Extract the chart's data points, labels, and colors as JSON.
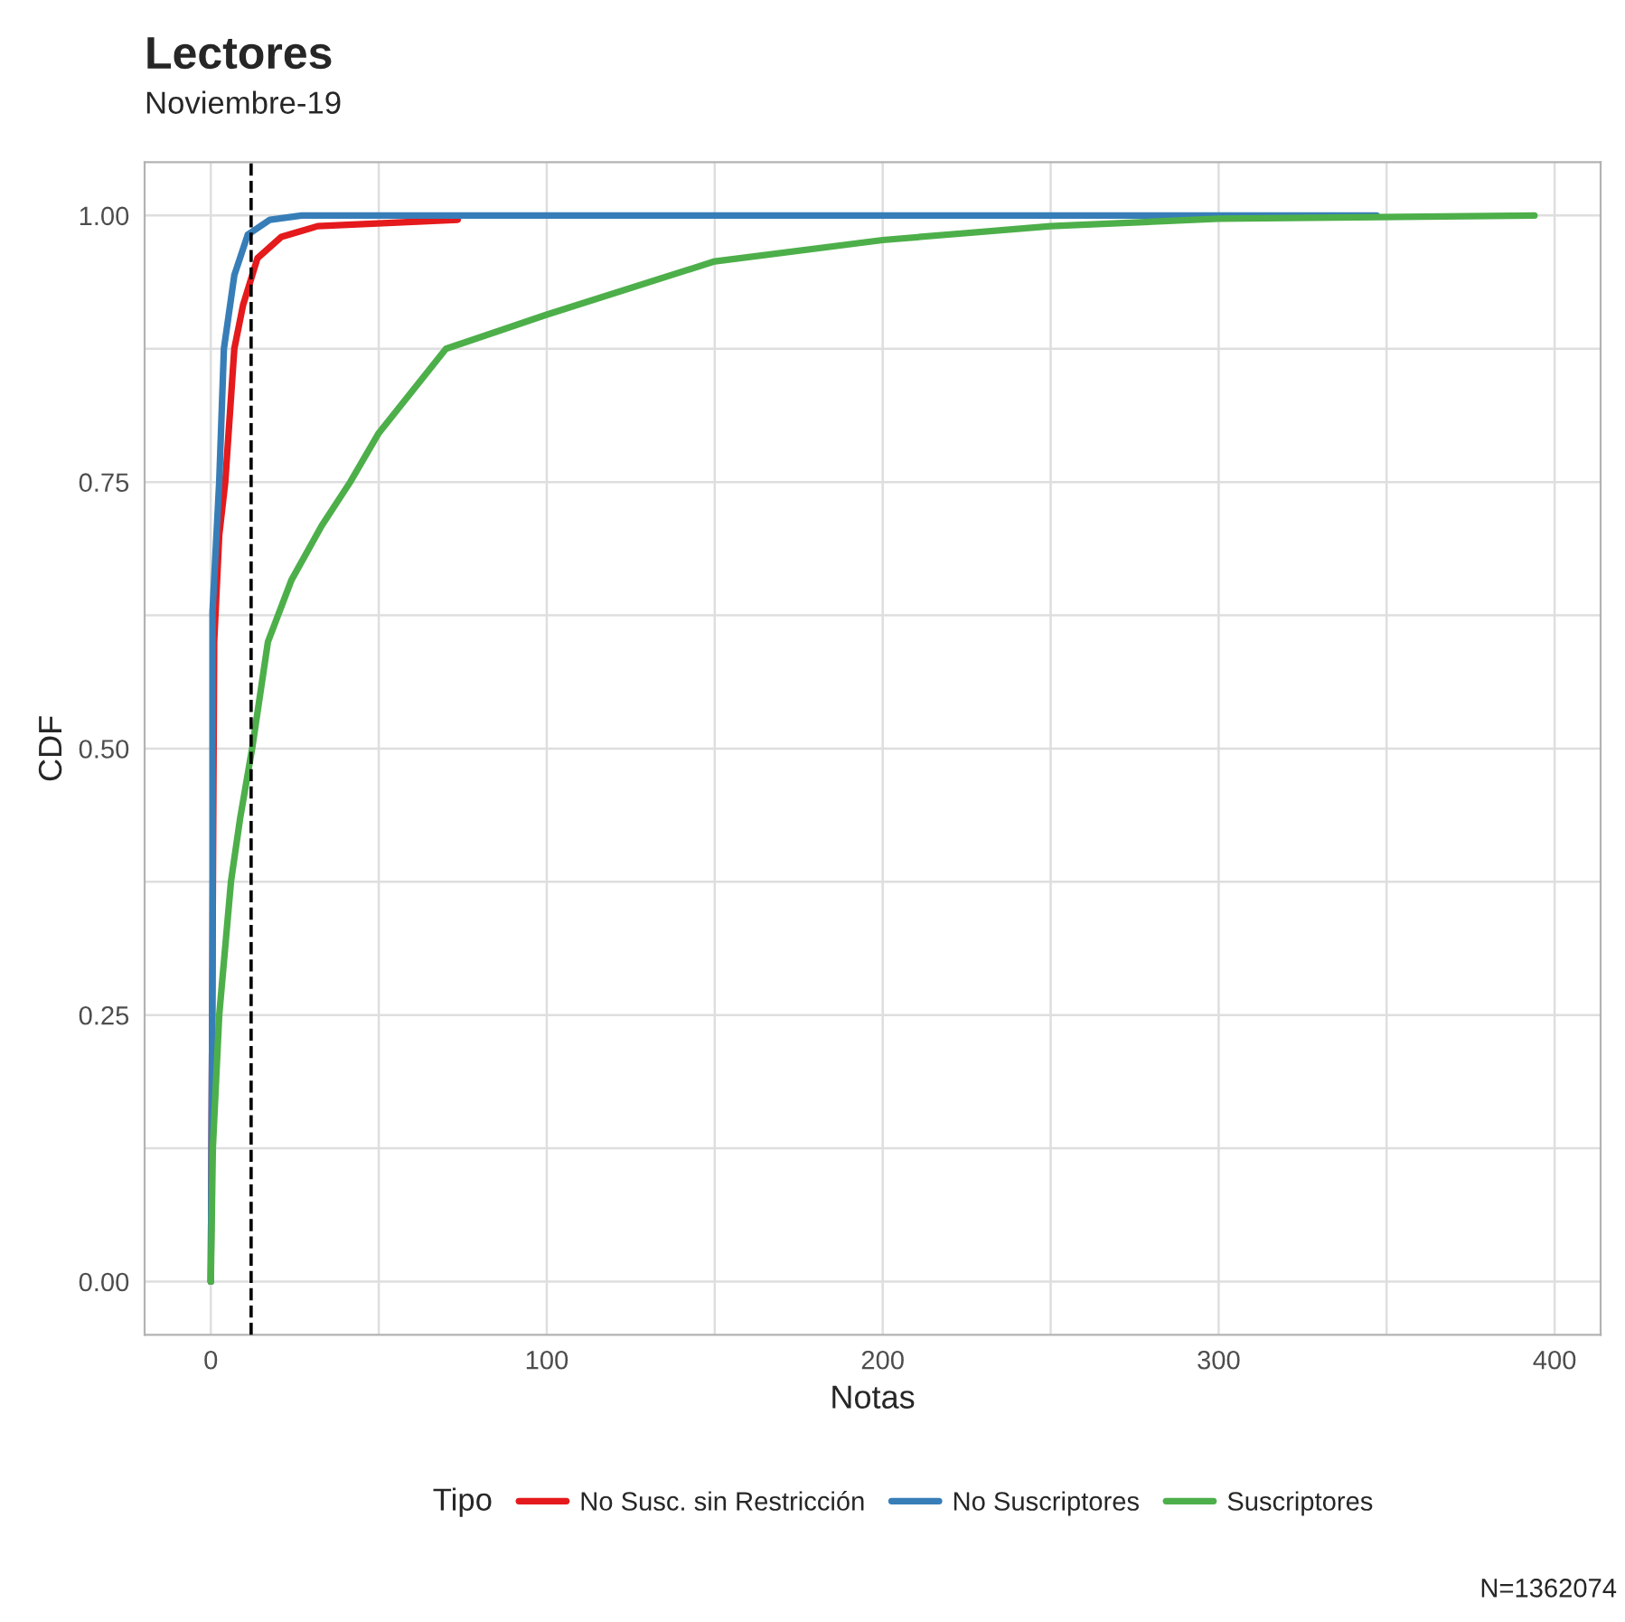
{
  "chart_data": {
    "type": "line",
    "title": "Lectores",
    "subtitle": "Noviembre-19",
    "xlabel": "Notas",
    "ylabel": "CDF",
    "legend_title": "Tipo",
    "annotations": [
      "N=1362074"
    ],
    "xlim": [
      -19.7,
      413.7
    ],
    "ylim": [
      -0.05,
      1.05
    ],
    "xticks": [
      0,
      {
        "value": 50,
        "label": null
      },
      100,
      {
        "value": 150,
        "label": null
      },
      200,
      {
        "value": 250,
        "label": null
      },
      300,
      {
        "value": 350,
        "label": null
      },
      400
    ],
    "yticks": [
      {
        "value": 0,
        "label": "0.00"
      },
      {
        "value": 0.125,
        "label": null
      },
      {
        "value": 0.25,
        "label": "0.25"
      },
      {
        "value": 0.375,
        "label": null
      },
      {
        "value": 0.5,
        "label": "0.50"
      },
      {
        "value": 0.625,
        "label": null
      },
      {
        "value": 0.75,
        "label": "0.75"
      },
      {
        "value": 0.875,
        "label": null
      },
      {
        "value": 1,
        "label": "1.00"
      }
    ],
    "grid": true,
    "legend": "bottom",
    "line_style": "solid",
    "ref_lines": [
      {
        "axis": "x",
        "value": 12,
        "color": "#000000",
        "line_style": "dashed"
      }
    ],
    "series": [
      {
        "name": "No Susc. sin Restricción",
        "color": "#e41a1c",
        "x": [
          0,
          1,
          2.5,
          4.3,
          7,
          9.6,
          13.9,
          21,
          31.8,
          73.5
        ],
        "values": [
          0,
          0.6,
          0.7,
          0.75,
          0.875,
          0.916,
          0.96,
          0.98,
          0.99,
          0.996
        ]
      },
      {
        "name": "No Suscriptores",
        "color": "#377eb8",
        "x": [
          0,
          0.5,
          0.5,
          2.5,
          3.9,
          7,
          11,
          17.6,
          27,
          347
        ],
        "values": [
          0,
          0.3,
          0.628,
          0.75,
          0.875,
          0.944,
          0.982,
          0.996,
          1,
          1
        ]
      },
      {
        "name": "Suscriptores",
        "color": "#4daf4a",
        "x": [
          0,
          0.6,
          2.5,
          6,
          8.7,
          12.3,
          17,
          24,
          33,
          41.5,
          50,
          70,
          100,
          150,
          200,
          250,
          300,
          394
        ],
        "values": [
          0,
          0.125,
          0.25,
          0.375,
          0.434,
          0.5,
          0.6,
          0.658,
          0.709,
          0.75,
          0.796,
          0.875,
          0.907,
          0.957,
          0.977,
          0.99,
          0.997,
          1
        ]
      }
    ]
  }
}
